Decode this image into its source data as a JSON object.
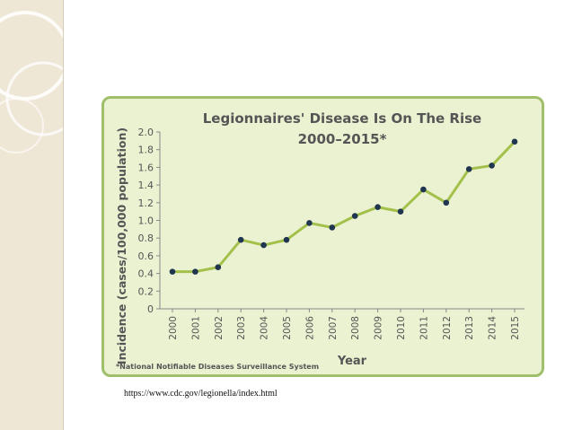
{
  "slide": {
    "source_url": "https://www.cdc.gov/legionella/index.html",
    "background_color": "#ffffff",
    "band_color": "#efe7d6"
  },
  "chart_data": {
    "type": "line",
    "title": "Legionnaires' Disease Is On The Rise",
    "subtitle": "2000–2015*",
    "xlabel": "Year",
    "ylabel": "Incidence (cases/100,000 population)",
    "footnote": "*National Notifiable Diseases Surveillance System",
    "x": [
      "2000",
      "2001",
      "2002",
      "2003",
      "2004",
      "2005",
      "2006",
      "2007",
      "2008",
      "2009",
      "2010",
      "2011",
      "2012",
      "2013",
      "2014",
      "2015"
    ],
    "y_ticks": [
      "0",
      "0.2",
      "0.4",
      "0.6",
      "0.8",
      "1.0",
      "1.2",
      "1.4",
      "1.6",
      "1.8",
      "2.0"
    ],
    "ylim": [
      0,
      2.0
    ],
    "grid": false,
    "series": [
      {
        "values": [
          0.42,
          0.42,
          0.47,
          0.78,
          0.72,
          0.78,
          0.97,
          0.92,
          1.05,
          1.15,
          1.1,
          1.35,
          1.2,
          1.58,
          1.62,
          1.89
        ]
      }
    ],
    "colors": {
      "panel_background": "#ebf2d2",
      "panel_border": "#9fbf6a",
      "line": "#a3c14a",
      "marker": "#1f3550",
      "title": "#555555",
      "axis_text": "#555555"
    }
  }
}
